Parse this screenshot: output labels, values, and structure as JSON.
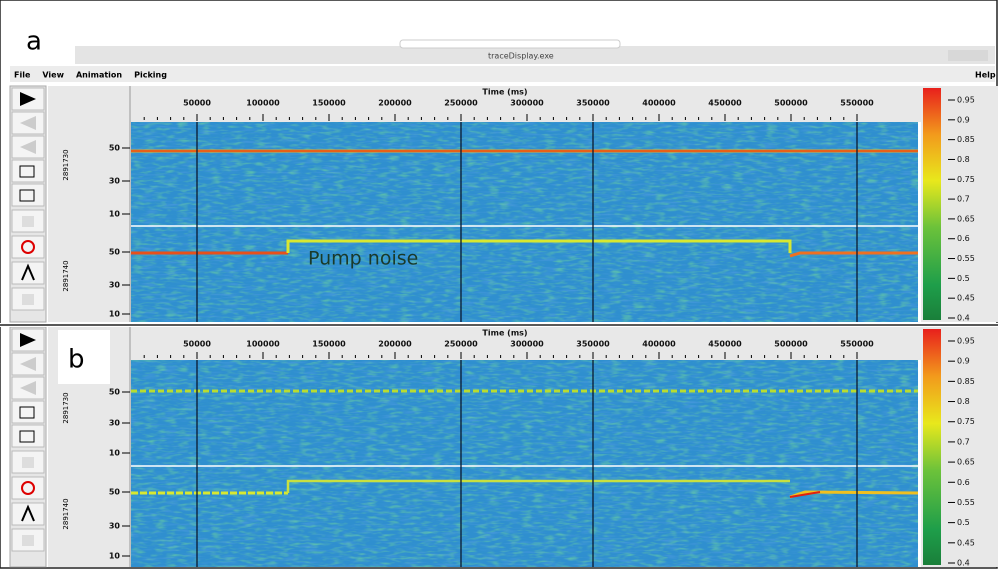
{
  "figure_labels": [
    "a",
    "b"
  ],
  "window": {
    "title": "traceDisplay.exe",
    "menu": [
      "File",
      "View",
      "Animation",
      "Picking"
    ],
    "help": "Help"
  },
  "axis": {
    "title": "Time (ms)",
    "xticks": [
      50000,
      100000,
      150000,
      200000,
      250000,
      300000,
      350000,
      400000,
      450000,
      500000,
      550000
    ],
    "yticks": [
      50,
      30,
      10
    ],
    "traces": [
      "2891730",
      "2891740"
    ]
  },
  "colorbar": {
    "ticks": [
      0.95,
      0.9,
      0.85,
      0.8,
      0.75,
      0.7,
      0.65,
      0.6,
      0.55,
      0.5,
      0.45,
      0.4
    ]
  },
  "annotation": "Pump noise"
}
